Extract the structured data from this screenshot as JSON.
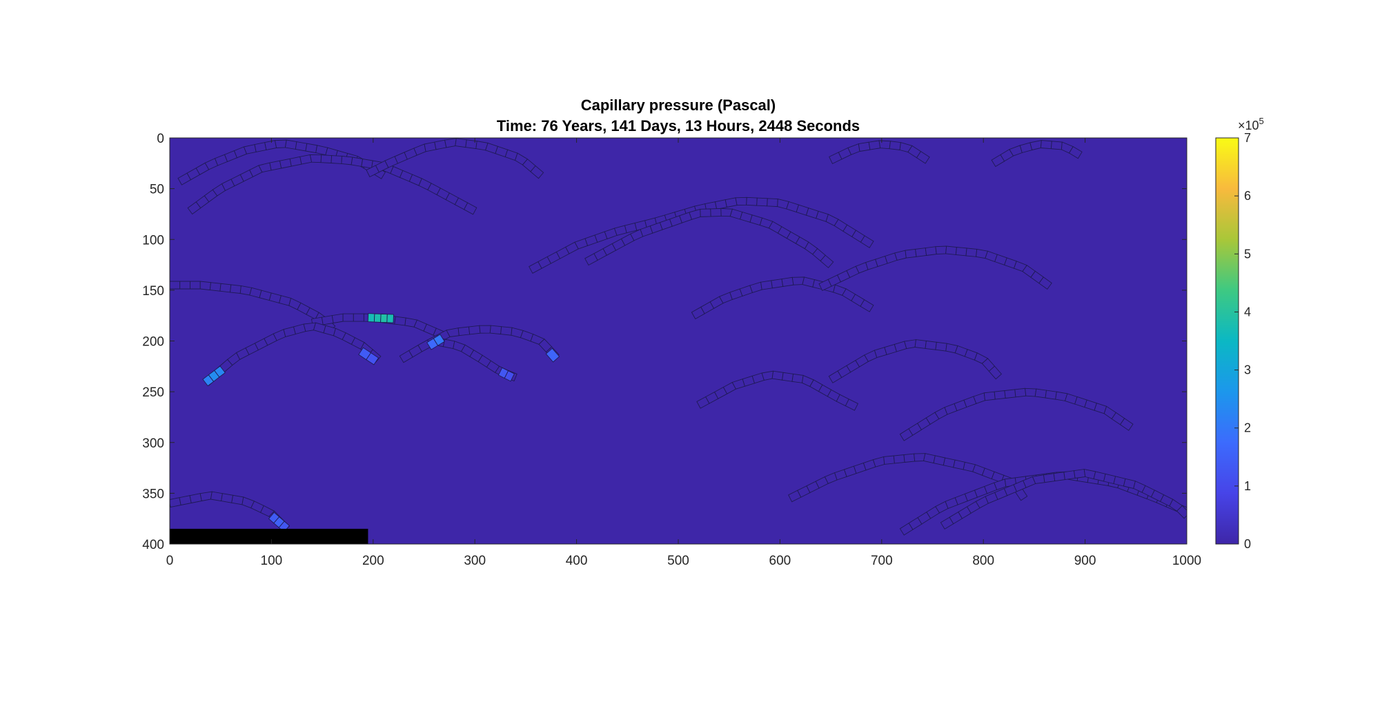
{
  "chart_data": {
    "type": "heatmap",
    "title": "Capillary pressure (Pascal)",
    "subtitle": "Time: 76 Years, 141 Days, 13 Hours, 2448 Seconds",
    "xlabel": "",
    "ylabel": "",
    "xlim": [
      0,
      1000
    ],
    "ylim": [
      0,
      400
    ],
    "y_reversed": true,
    "x_ticks": [
      0,
      100,
      200,
      300,
      400,
      500,
      600,
      700,
      800,
      900,
      1000
    ],
    "y_ticks": [
      0,
      50,
      100,
      150,
      200,
      250,
      300,
      350,
      400
    ],
    "grid": false,
    "colorbar": {
      "colormap": "parula",
      "range": [
        0,
        700000
      ],
      "ticks": [
        0,
        1,
        2,
        3,
        4,
        5,
        6,
        7
      ],
      "multiplier_base": "×10",
      "multiplier_exponent": "5"
    },
    "background_value": 0,
    "background_color": "#3e26a8",
    "outline_color": "#1f1a55",
    "well_block": {
      "x": [
        0,
        195
      ],
      "y": [
        385,
        400
      ],
      "color": "#000000"
    },
    "fractures": [
      {
        "points": [
          [
            10,
            43
          ],
          [
            40,
            26
          ],
          [
            75,
            12
          ],
          [
            110,
            5
          ],
          [
            150,
            12
          ],
          [
            185,
            22
          ],
          [
            210,
            37
          ]
        ],
        "width": 11,
        "values": []
      },
      {
        "points": [
          [
            20,
            72
          ],
          [
            50,
            50
          ],
          [
            90,
            30
          ],
          [
            140,
            20
          ],
          [
            175,
            22
          ],
          [
            210,
            28
          ],
          [
            250,
            45
          ],
          [
            300,
            72
          ]
        ],
        "width": 11,
        "values": []
      },
      {
        "points": [
          [
            195,
            35
          ],
          [
            215,
            25
          ],
          [
            250,
            10
          ],
          [
            280,
            4
          ],
          [
            310,
            8
          ],
          [
            345,
            20
          ],
          [
            365,
            37
          ]
        ],
        "width": 11,
        "values": []
      },
      {
        "points": [
          [
            0,
            145
          ],
          [
            30,
            145
          ],
          [
            75,
            150
          ],
          [
            120,
            162
          ],
          [
            150,
            178
          ],
          [
            160,
            188
          ]
        ],
        "width": 11,
        "values": []
      },
      {
        "points": [
          [
            140,
            182
          ],
          [
            170,
            177
          ],
          [
            200,
            177
          ],
          [
            240,
            182
          ],
          [
            270,
            195
          ]
        ],
        "width": 11,
        "values": []
      },
      {
        "points": [
          [
            36,
            241
          ],
          [
            65,
            216
          ],
          [
            110,
            193
          ],
          [
            140,
            185
          ],
          [
            165,
            192
          ],
          [
            190,
            205
          ],
          [
            205,
            218
          ]
        ],
        "width": 11,
        "values": []
      },
      {
        "points": [
          [
            228,
            218
          ],
          [
            250,
            205
          ],
          [
            275,
            192
          ],
          [
            310,
            188
          ],
          [
            340,
            191
          ],
          [
            365,
            200
          ],
          [
            380,
            216
          ]
        ],
        "width": 11,
        "values": []
      },
      {
        "points": [
          [
            260,
            200
          ],
          [
            285,
            205
          ],
          [
            305,
            217
          ],
          [
            325,
            230
          ],
          [
            340,
            236
          ]
        ],
        "width": 11,
        "values": []
      },
      {
        "points": [
          [
            0,
            360
          ],
          [
            40,
            352
          ],
          [
            75,
            358
          ],
          [
            100,
            370
          ],
          [
            115,
            385
          ]
        ],
        "width": 11,
        "values": []
      },
      {
        "points": [
          [
            355,
            130
          ],
          [
            400,
            106
          ],
          [
            440,
            92
          ],
          [
            480,
            82
          ],
          [
            520,
            70
          ],
          [
            560,
            62
          ],
          [
            600,
            64
          ],
          [
            650,
            80
          ],
          [
            690,
            105
          ]
        ],
        "width": 11,
        "values": []
      },
      {
        "points": [
          [
            410,
            122
          ],
          [
            460,
            95
          ],
          [
            520,
            74
          ],
          [
            550,
            73
          ],
          [
            590,
            85
          ],
          [
            630,
            108
          ],
          [
            650,
            125
          ]
        ],
        "width": 11,
        "values": []
      },
      {
        "points": [
          [
            515,
            175
          ],
          [
            545,
            158
          ],
          [
            580,
            146
          ],
          [
            620,
            140
          ],
          [
            660,
            150
          ],
          [
            690,
            168
          ]
        ],
        "width": 11,
        "values": []
      },
      {
        "points": [
          [
            640,
            147
          ],
          [
            680,
            128
          ],
          [
            720,
            115
          ],
          [
            760,
            110
          ],
          [
            800,
            114
          ],
          [
            840,
            128
          ],
          [
            865,
            146
          ]
        ],
        "width": 11,
        "values": []
      },
      {
        "points": [
          [
            650,
            22
          ],
          [
            675,
            10
          ],
          [
            700,
            6
          ],
          [
            725,
            9
          ],
          [
            745,
            22
          ]
        ],
        "width": 11,
        "values": []
      },
      {
        "points": [
          [
            810,
            25
          ],
          [
            830,
            13
          ],
          [
            855,
            6
          ],
          [
            880,
            8
          ],
          [
            895,
            17
          ]
        ],
        "width": 11,
        "values": []
      },
      {
        "points": [
          [
            520,
            263
          ],
          [
            555,
            244
          ],
          [
            590,
            233
          ],
          [
            625,
            238
          ],
          [
            655,
            255
          ],
          [
            675,
            265
          ]
        ],
        "width": 11,
        "values": []
      },
      {
        "points": [
          [
            650,
            238
          ],
          [
            690,
            214
          ],
          [
            730,
            202
          ],
          [
            770,
            207
          ],
          [
            800,
            218
          ],
          [
            815,
            235
          ]
        ],
        "width": 11,
        "values": []
      },
      {
        "points": [
          [
            720,
            295
          ],
          [
            760,
            270
          ],
          [
            800,
            255
          ],
          [
            845,
            250
          ],
          [
            880,
            255
          ],
          [
            920,
            268
          ],
          [
            945,
            285
          ]
        ],
        "width": 11,
        "values": []
      },
      {
        "points": [
          [
            610,
            355
          ],
          [
            650,
            335
          ],
          [
            700,
            318
          ],
          [
            740,
            314
          ],
          [
            790,
            325
          ],
          [
            830,
            340
          ],
          [
            840,
            355
          ]
        ],
        "width": 11,
        "values": []
      },
      {
        "points": [
          [
            720,
            388
          ],
          [
            760,
            363
          ],
          [
            820,
            340
          ],
          [
            880,
            332
          ],
          [
            930,
            340
          ],
          [
            970,
            355
          ],
          [
            1000,
            368
          ]
        ],
        "width": 11,
        "values": []
      },
      {
        "points": [
          [
            760,
            382
          ],
          [
            800,
            358
          ],
          [
            850,
            337
          ],
          [
            900,
            330
          ],
          [
            950,
            342
          ],
          [
            990,
            362
          ],
          [
            1000,
            372
          ]
        ],
        "width": 11,
        "values": []
      },
      {
        "points": [
          [
            195,
            177
          ],
          [
            220,
            178
          ]
        ],
        "width": 12,
        "values": [
          370000,
          380000,
          390000,
          375000
        ]
      },
      {
        "points": [
          [
            255,
            205
          ],
          [
            268,
            197
          ]
        ],
        "width": 12,
        "values": [
          170000,
          200000
        ]
      },
      {
        "points": [
          [
            35,
            241
          ],
          [
            52,
            228
          ]
        ],
        "width": 12,
        "values": [
          220000,
          240000,
          230000
        ]
      },
      {
        "points": [
          [
            188,
            210
          ],
          [
            203,
            220
          ]
        ],
        "width": 12,
        "values": [
          140000,
          120000
        ]
      },
      {
        "points": [
          [
            325,
            230
          ],
          [
            337,
            236
          ]
        ],
        "width": 12,
        "values": [
          130000,
          110000
        ]
      },
      {
        "points": [
          [
            373,
            210
          ],
          [
            380,
            218
          ]
        ],
        "width": 12,
        "values": [
          160000
        ]
      },
      {
        "points": [
          [
            100,
            372
          ],
          [
            115,
            385
          ]
        ],
        "width": 12,
        "values": [
          140000,
          150000,
          130000
        ]
      }
    ]
  }
}
